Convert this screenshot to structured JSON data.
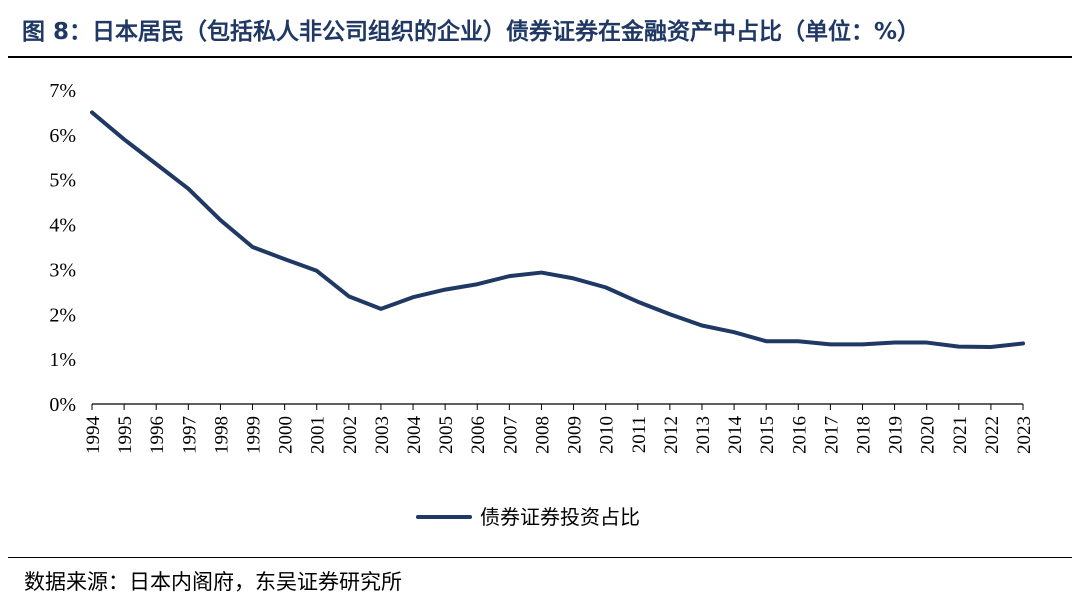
{
  "title": "图 8：日本居民（包括私人非公司组织的企业）债券证券在金融资产中占比（单位：%）",
  "source": "数据来源：日本内阁府，东吴证券研究所",
  "chart_data": {
    "type": "line",
    "title": "图 8：日本居民（包括私人非公司组织的企业）债券证券在金融资产中占比（单位：%）",
    "xlabel": "",
    "ylabel": "",
    "ylim": [
      0,
      7
    ],
    "yticks": [
      "0%",
      "1%",
      "2%",
      "3%",
      "4%",
      "5%",
      "6%",
      "7%"
    ],
    "grid": false,
    "legend_position": "bottom",
    "line_color": "#1f3864",
    "x": [
      "1994",
      "1995",
      "1996",
      "1997",
      "1998",
      "1999",
      "2000",
      "2001",
      "2002",
      "2003",
      "2004",
      "2005",
      "2006",
      "2007",
      "2008",
      "2009",
      "2010",
      "2011",
      "2012",
      "2013",
      "2014",
      "2015",
      "2016",
      "2017",
      "2018",
      "2019",
      "2020",
      "2021",
      "2022",
      "2023"
    ],
    "series": [
      {
        "name": "债券证券投资占比",
        "values": [
          6.5,
          5.9,
          5.35,
          4.8,
          4.1,
          3.5,
          3.23,
          2.97,
          2.4,
          2.12,
          2.38,
          2.55,
          2.67,
          2.85,
          2.93,
          2.8,
          2.6,
          2.28,
          2.0,
          1.75,
          1.6,
          1.4,
          1.4,
          1.33,
          1.33,
          1.37,
          1.37,
          1.28,
          1.27,
          1.35
        ]
      }
    ]
  }
}
